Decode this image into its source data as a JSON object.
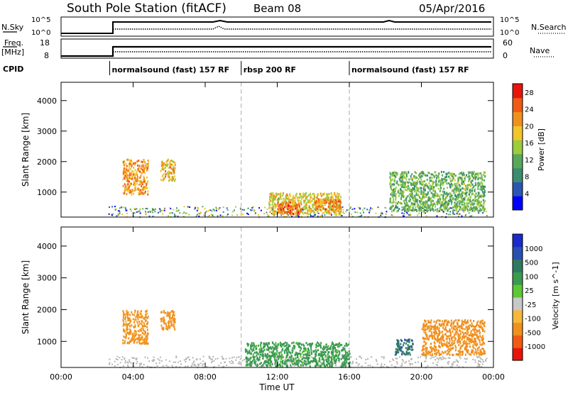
{
  "header": {
    "title": "South Pole Station (fitACF)",
    "beam": "Beam 08",
    "date": "05/Apr/2016"
  },
  "top_panels": {
    "nsky_label": "N.Sky",
    "nsky_ticks": [
      "10^5",
      "10^0"
    ],
    "nsearch_label": "N.Search",
    "freq_label": "Freq.",
    "freq_unit": "[MHz]",
    "freq_ticks": [
      "18",
      "8"
    ],
    "nave_ticks": [
      "60",
      "0"
    ],
    "nave_label": "Nave",
    "cpid_label": "CPID",
    "modes": [
      {
        "label": "normalsound (fast) 157 RF",
        "start_hour": 2.7
      },
      {
        "label": "rbsp 200 RF",
        "start_hour": 10.0
      },
      {
        "label": "normalsound (fast) 157 RF",
        "start_hour": 16.0
      }
    ]
  },
  "colors": {
    "power_scale": [
      "#0000ff",
      "#2a55b2",
      "#3a8c6e",
      "#58a85a",
      "#9ccc3c",
      "#f2c52a",
      "#f0911e",
      "#f05a14",
      "#e8140c"
    ],
    "velocity_scale": [
      "#e8140c",
      "#f05a14",
      "#f0911e",
      "#f5b83a",
      "#c8c8c8",
      "#5cc832",
      "#3a9a50",
      "#2e7a60",
      "#2a4fb0",
      "#1a2acc"
    ],
    "ground_scatter": "#b4b4b4"
  },
  "chart_data": [
    {
      "type": "heatmap",
      "name": "power",
      "xlabel": "",
      "ylabel": "Slant Range [km]",
      "x_range_hours": [
        0,
        24
      ],
      "ylim": [
        180,
        4600
      ],
      "y_ticks": [
        "1000",
        "2000",
        "3000",
        "4000"
      ],
      "colorbar": {
        "label": "Power [dB]",
        "ticks": [
          "4",
          "8",
          "12",
          "16",
          "20",
          "24",
          "28"
        ],
        "range": [
          0,
          30
        ]
      },
      "regions": [
        {
          "x": [
            3.4,
            4.8
          ],
          "y": [
            950,
            2100
          ],
          "value": 22
        },
        {
          "x": [
            5.5,
            6.3
          ],
          "y": [
            1400,
            2100
          ],
          "value": 20
        },
        {
          "x": [
            11.5,
            15.5
          ],
          "y": [
            300,
            1000
          ],
          "value": 18
        },
        {
          "x": [
            12.0,
            13.3
          ],
          "y": [
            300,
            700
          ],
          "value": 26
        },
        {
          "x": [
            14.0,
            15.5
          ],
          "y": [
            450,
            800
          ],
          "value": 24
        },
        {
          "x": [
            18.2,
            23.5
          ],
          "y": [
            400,
            1700
          ],
          "value": 12
        }
      ]
    },
    {
      "type": "heatmap",
      "name": "velocity",
      "xlabel": "Time UT",
      "ylabel": "Slant Range [km]",
      "x_ticks": [
        "00:00",
        "04:00",
        "08:00",
        "12:00",
        "16:00",
        "20:00",
        "00:00"
      ],
      "ylim": [
        180,
        4600
      ],
      "y_ticks": [
        "1000",
        "2000",
        "3000",
        "4000"
      ],
      "colorbar": {
        "label": "Velocity [m s^-1]",
        "ticks": [
          "1000",
          "500",
          "100",
          "25",
          "-25",
          "-100",
          "-500",
          "-1000"
        ]
      },
      "regions": [
        {
          "x": [
            3.4,
            4.8
          ],
          "y": [
            950,
            2000
          ],
          "value": -150
        },
        {
          "x": [
            5.5,
            6.3
          ],
          "y": [
            1400,
            2000
          ],
          "value": -150
        },
        {
          "x": [
            10.2,
            16.0
          ],
          "y": [
            250,
            1000
          ],
          "value": 150
        },
        {
          "x": [
            18.5,
            19.5
          ],
          "y": [
            600,
            1100
          ],
          "value": 800
        },
        {
          "x": [
            20.0,
            23.5
          ],
          "y": [
            600,
            1700
          ],
          "value": -300
        }
      ]
    }
  ],
  "labels": {
    "time_axis": "Time UT"
  }
}
